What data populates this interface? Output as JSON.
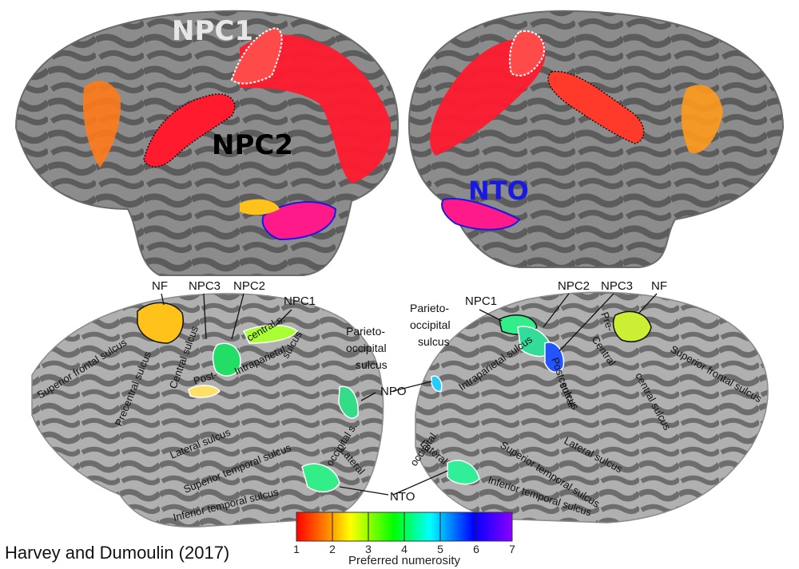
{
  "colors": {
    "brain_dark": "#666666",
    "brain_light": "#a6a6a6",
    "inflated_dark": "#5e5e5e",
    "inflated_light": "#8c8c8c",
    "activation_red": "#ff1a2e",
    "activation_orange": "#ff7a1a",
    "activation_yellow": "#ffc21a",
    "ntO_label": "#1a1adf",
    "npc1_label": "#e6e6e6",
    "npc2_label": "#000000"
  },
  "top_labels": {
    "npc1": "NPC1",
    "npc2": "NPC2",
    "nto": "NTO"
  },
  "left_flat": {
    "nf": "NF",
    "npc3": "NPC3",
    "npc2": "NPC2",
    "npc1": "NPC1",
    "parieto_occipital": [
      "Parieto-",
      "occipital",
      "sulcus"
    ],
    "npo": "NPO",
    "nto": "NTO",
    "sulci": {
      "superior_frontal": "Superior frontal sulcus",
      "precentral": "Precentral sulcus",
      "central": "Central sulcus",
      "post": "Post-",
      "central_s": "central s.",
      "intraparietal": "Intraparietal",
      "sulcus": "sulcus",
      "lateral": "Lateral sulcus",
      "superior_temporal": "Superior temporal sulcus",
      "inferior_temporal": "Inferior temporal sulcus",
      "lateral_occipital": [
        "Lateral",
        "occipital s."
      ]
    }
  },
  "right_flat": {
    "npc1": "NPC1",
    "npc2": "NPC2",
    "npc3": "NPC3",
    "nf": "NF",
    "parieto_occipital": [
      "Parieto-",
      "occipital",
      "sulcus"
    ],
    "sulci": {
      "postcentral": "Postcentral",
      "pre": "Pre-",
      "central": "Central",
      "sulcus": "sulcus",
      "central_sulcus": "central sulcus",
      "superior_frontal": "Superior frontal sulcus",
      "intraparietal": "Intraparietal sulcus",
      "lateral_occipital": [
        "Lateral",
        "occipital"
      ],
      "superior_temporal": "Superior temporal sulcus",
      "lateral": "Lateral sulcus",
      "inferior_temporal": "Inferior temporal sulcus"
    }
  },
  "colorbar": {
    "ticks": [
      "1",
      "2",
      "3",
      "4",
      "5",
      "6",
      "7"
    ],
    "label": "Preferred numerosity",
    "stops": [
      "#ff0000",
      "#ffff00",
      "#00ff00",
      "#00ffff",
      "#0000ff",
      "#8a00ff"
    ]
  },
  "credit": "Harvey and Dumoulin (2017)"
}
